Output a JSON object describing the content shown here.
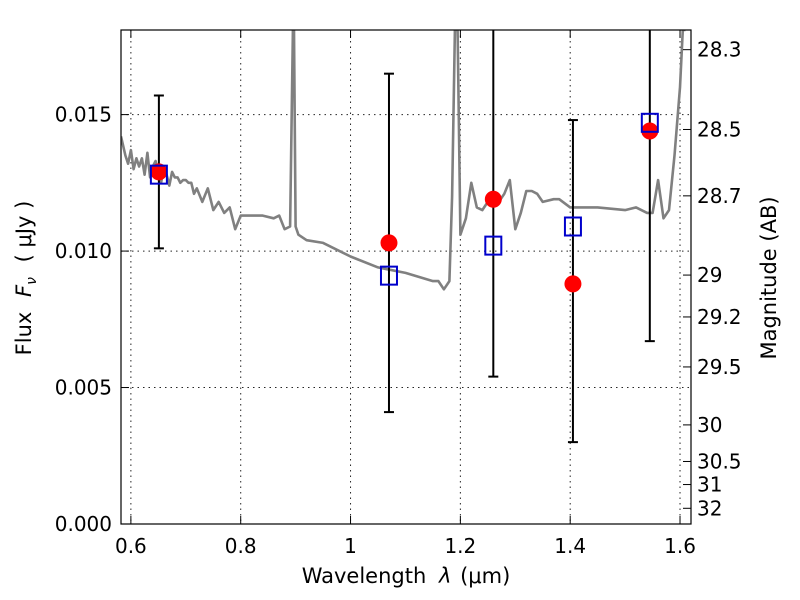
{
  "chart_data": {
    "type": "scatter",
    "xlabel_prefix": "Wavelength",
    "xlabel_symbol": "λ",
    "xlabel_unit": "(μm)",
    "ylabel_prefix": "Flux",
    "ylabel_symbol": "F",
    "ylabel_subscript": "ν",
    "ylabel_unit": "( μJy )",
    "y2label": "Magnitude (AB)",
    "xlim": [
      0.582,
      1.62
    ],
    "ylim": [
      0.0,
      0.0181
    ],
    "xticks": [
      0.6,
      0.8,
      1.0,
      1.2,
      1.4,
      1.6
    ],
    "xtick_labels": [
      "0.6",
      "0.8",
      "1",
      "1.2",
      "1.4",
      "1.6"
    ],
    "yticks": [
      0.0,
      0.005,
      0.01,
      0.015
    ],
    "ytick_labels": [
      "0.000",
      "0.005",
      "0.010",
      "0.015"
    ],
    "y2ticks": [
      {
        "value": 28.3,
        "label": "28.3"
      },
      {
        "value": 28.5,
        "label": "28.5"
      },
      {
        "value": 28.7,
        "label": "28.7"
      },
      {
        "value": 29.0,
        "label": "29"
      },
      {
        "value": 29.2,
        "label": "29.2"
      },
      {
        "value": 29.5,
        "label": "29.5"
      },
      {
        "value": 30.0,
        "label": "30"
      },
      {
        "value": 30.5,
        "label": "30.5"
      },
      {
        "value": 31.0,
        "label": "31"
      },
      {
        "value": 32.0,
        "label": "32"
      }
    ],
    "grid": true,
    "colors": {
      "model_spectrum": "#808080",
      "observed": "#ff0000",
      "model_photometry": "#0000cc",
      "errorbar": "#000000"
    },
    "series": [
      {
        "name": "model-spectrum",
        "style": "line",
        "x": [
          0.582,
          0.59,
          0.595,
          0.6,
          0.605,
          0.61,
          0.615,
          0.62,
          0.625,
          0.63,
          0.635,
          0.64,
          0.645,
          0.65,
          0.655,
          0.66,
          0.665,
          0.67,
          0.675,
          0.68,
          0.685,
          0.69,
          0.695,
          0.7,
          0.705,
          0.71,
          0.715,
          0.72,
          0.73,
          0.74,
          0.75,
          0.76,
          0.77,
          0.78,
          0.79,
          0.8,
          0.82,
          0.84,
          0.86,
          0.87,
          0.88,
          0.89,
          0.895,
          0.897,
          0.9,
          0.905,
          0.92,
          0.95,
          1.0,
          1.05,
          1.1,
          1.15,
          1.16,
          1.17,
          1.18,
          1.185,
          1.19,
          1.195,
          1.2,
          1.21,
          1.22,
          1.23,
          1.24,
          1.25,
          1.26,
          1.27,
          1.28,
          1.29,
          1.3,
          1.31,
          1.32,
          1.33,
          1.34,
          1.35,
          1.37,
          1.38,
          1.4,
          1.45,
          1.5,
          1.52,
          1.54,
          1.55,
          1.56,
          1.57,
          1.58,
          1.59,
          1.6,
          1.605,
          1.61
        ],
        "y": [
          0.0142,
          0.0135,
          0.0132,
          0.0137,
          0.013,
          0.0134,
          0.0131,
          0.0134,
          0.0128,
          0.0136,
          0.0127,
          0.0131,
          0.0133,
          0.0128,
          0.0125,
          0.0131,
          0.0128,
          0.0124,
          0.0129,
          0.0127,
          0.0127,
          0.0125,
          0.0126,
          0.0126,
          0.0125,
          0.0125,
          0.0121,
          0.0123,
          0.0118,
          0.0123,
          0.0115,
          0.0118,
          0.0114,
          0.0116,
          0.0108,
          0.0113,
          0.0113,
          0.0113,
          0.0112,
          0.0113,
          0.0108,
          0.0109,
          0.0181,
          0.0181,
          0.0109,
          0.0106,
          0.0104,
          0.0103,
          0.0098,
          0.0094,
          0.0092,
          0.0089,
          0.0089,
          0.0086,
          0.0089,
          0.012,
          0.0181,
          0.0181,
          0.0106,
          0.0112,
          0.0125,
          0.0116,
          0.0115,
          0.0118,
          0.0117,
          0.0118,
          0.0121,
          0.0126,
          0.0108,
          0.0114,
          0.0122,
          0.0122,
          0.0121,
          0.0118,
          0.0119,
          0.0119,
          0.0116,
          0.0116,
          0.0115,
          0.0116,
          0.0114,
          0.0114,
          0.0126,
          0.0112,
          0.0115,
          0.0135,
          0.016,
          0.0181,
          0.0181
        ]
      },
      {
        "name": "model-photometry",
        "style": "open-square",
        "x": [
          0.651,
          1.07,
          1.26,
          1.405,
          1.545
        ],
        "y": [
          0.0128,
          0.0091,
          0.0102,
          0.0109,
          0.0147
        ]
      },
      {
        "name": "observed-flux",
        "style": "filled-circle",
        "x": [
          0.651,
          1.07,
          1.26,
          1.405,
          1.545
        ],
        "y": [
          0.0129,
          0.0103,
          0.0119,
          0.0088,
          0.0144
        ],
        "yerr_low": [
          0.0101,
          0.0041,
          0.0054,
          0.003,
          0.0067
        ],
        "yerr_high": [
          0.0157,
          0.0165,
          0.0181,
          0.0148,
          0.0181
        ]
      }
    ]
  }
}
